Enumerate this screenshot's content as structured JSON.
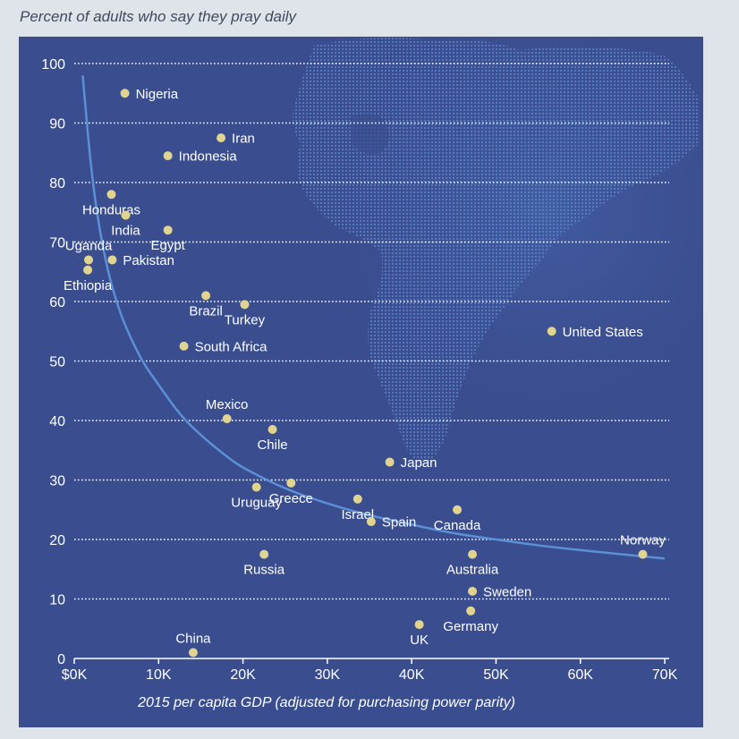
{
  "colors": {
    "panel": "#3a4d8e",
    "globe": "#4a70b8",
    "grid": "#ffffff",
    "trend": "#5b8fd6",
    "point": "#e0d48e",
    "text": "#ffffff",
    "title": "#404a5c"
  },
  "chart_data": {
    "type": "scatter",
    "title": "Percent of adults who say they pray daily",
    "xlabel": "2015 per capita GDP (adjusted for purchasing power parity)",
    "ylabel": "",
    "xlim": [
      0,
      70000
    ],
    "ylim": [
      0,
      100
    ],
    "x_ticks": [
      {
        "value": 0,
        "label": "$0K"
      },
      {
        "value": 10000,
        "label": "10K"
      },
      {
        "value": 20000,
        "label": "20K"
      },
      {
        "value": 30000,
        "label": "30K"
      },
      {
        "value": 40000,
        "label": "40K"
      },
      {
        "value": 50000,
        "label": "50K"
      },
      {
        "value": 60000,
        "label": "60K"
      },
      {
        "value": 70000,
        "label": "70K"
      }
    ],
    "y_ticks": [
      {
        "value": 0,
        "label": "0"
      },
      {
        "value": 10,
        "label": "10"
      },
      {
        "value": 20,
        "label": "20"
      },
      {
        "value": 30,
        "label": "30"
      },
      {
        "value": 40,
        "label": "40"
      },
      {
        "value": 50,
        "label": "50"
      },
      {
        "value": 60,
        "label": "60"
      },
      {
        "value": 70,
        "label": "70"
      },
      {
        "value": 80,
        "label": "80"
      },
      {
        "value": 90,
        "label": "90"
      },
      {
        "value": 100,
        "label": "100"
      }
    ],
    "grid": "horizontal dotted",
    "points": [
      {
        "label": "Nigeria",
        "x": 6000,
        "y": 95,
        "label_pos": "right"
      },
      {
        "label": "Iran",
        "x": 17400,
        "y": 87.5,
        "label_pos": "right"
      },
      {
        "label": "Indonesia",
        "x": 11100,
        "y": 84.5,
        "label_pos": "right"
      },
      {
        "label": "Honduras",
        "x": 4400,
        "y": 78,
        "label_pos": "below"
      },
      {
        "label": "India",
        "x": 6100,
        "y": 74.5,
        "label_pos": "below"
      },
      {
        "label": "Egypt",
        "x": 11100,
        "y": 72,
        "label_pos": "below"
      },
      {
        "label": "Uganda",
        "x": 1700,
        "y": 67,
        "label_pos": "above"
      },
      {
        "label": "Pakistan",
        "x": 4500,
        "y": 67,
        "label_pos": "right"
      },
      {
        "label": "Ethiopia",
        "x": 1600,
        "y": 65.3,
        "label_pos": "below"
      },
      {
        "label": "Brazil",
        "x": 15600,
        "y": 61,
        "label_pos": "below"
      },
      {
        "label": "Turkey",
        "x": 20200,
        "y": 59.5,
        "label_pos": "below"
      },
      {
        "label": "South Africa",
        "x": 13000,
        "y": 52.5,
        "label_pos": "right"
      },
      {
        "label": "United States",
        "x": 56600,
        "y": 55,
        "label_pos": "right"
      },
      {
        "label": "Mexico",
        "x": 18100,
        "y": 40.3,
        "label_pos": "above"
      },
      {
        "label": "Chile",
        "x": 23500,
        "y": 38.5,
        "label_pos": "below"
      },
      {
        "label": "Japan",
        "x": 37400,
        "y": 33,
        "label_pos": "right"
      },
      {
        "label": "Uruguay",
        "x": 21600,
        "y": 28.8,
        "label_pos": "below"
      },
      {
        "label": "Greece",
        "x": 25700,
        "y": 29.5,
        "label_pos": "below"
      },
      {
        "label": "Israel",
        "x": 33600,
        "y": 26.8,
        "label_pos": "below"
      },
      {
        "label": "Spain",
        "x": 35200,
        "y": 23,
        "label_pos": "right"
      },
      {
        "label": "Canada",
        "x": 45400,
        "y": 25,
        "label_pos": "below"
      },
      {
        "label": "Norway",
        "x": 67400,
        "y": 17.5,
        "label_pos": "above"
      },
      {
        "label": "Russia",
        "x": 22500,
        "y": 17.5,
        "label_pos": "below"
      },
      {
        "label": "Australia",
        "x": 47200,
        "y": 17.5,
        "label_pos": "below"
      },
      {
        "label": "Sweden",
        "x": 47200,
        "y": 11.3,
        "label_pos": "right"
      },
      {
        "label": "Germany",
        "x": 47000,
        "y": 8,
        "label_pos": "below"
      },
      {
        "label": "UK",
        "x": 40900,
        "y": 5.7,
        "label_pos": "below"
      },
      {
        "label": "China",
        "x": 14100,
        "y": 1,
        "label_pos": "above"
      }
    ],
    "trend_line": [
      {
        "x": 1000,
        "y": 98
      },
      {
        "x": 2000,
        "y": 82
      },
      {
        "x": 3000,
        "y": 72
      },
      {
        "x": 4000,
        "y": 65
      },
      {
        "x": 5000,
        "y": 60
      },
      {
        "x": 6000,
        "y": 56
      },
      {
        "x": 8000,
        "y": 50
      },
      {
        "x": 10000,
        "y": 46
      },
      {
        "x": 12500,
        "y": 41
      },
      {
        "x": 15000,
        "y": 37.5
      },
      {
        "x": 18000,
        "y": 34
      },
      {
        "x": 20000,
        "y": 32
      },
      {
        "x": 25000,
        "y": 28.5
      },
      {
        "x": 30000,
        "y": 26
      },
      {
        "x": 35000,
        "y": 24
      },
      {
        "x": 40000,
        "y": 22.5
      },
      {
        "x": 45000,
        "y": 21
      },
      {
        "x": 50000,
        "y": 20
      },
      {
        "x": 55000,
        "y": 19
      },
      {
        "x": 60000,
        "y": 18.2
      },
      {
        "x": 65000,
        "y": 17.5
      },
      {
        "x": 70000,
        "y": 16.8
      }
    ]
  }
}
